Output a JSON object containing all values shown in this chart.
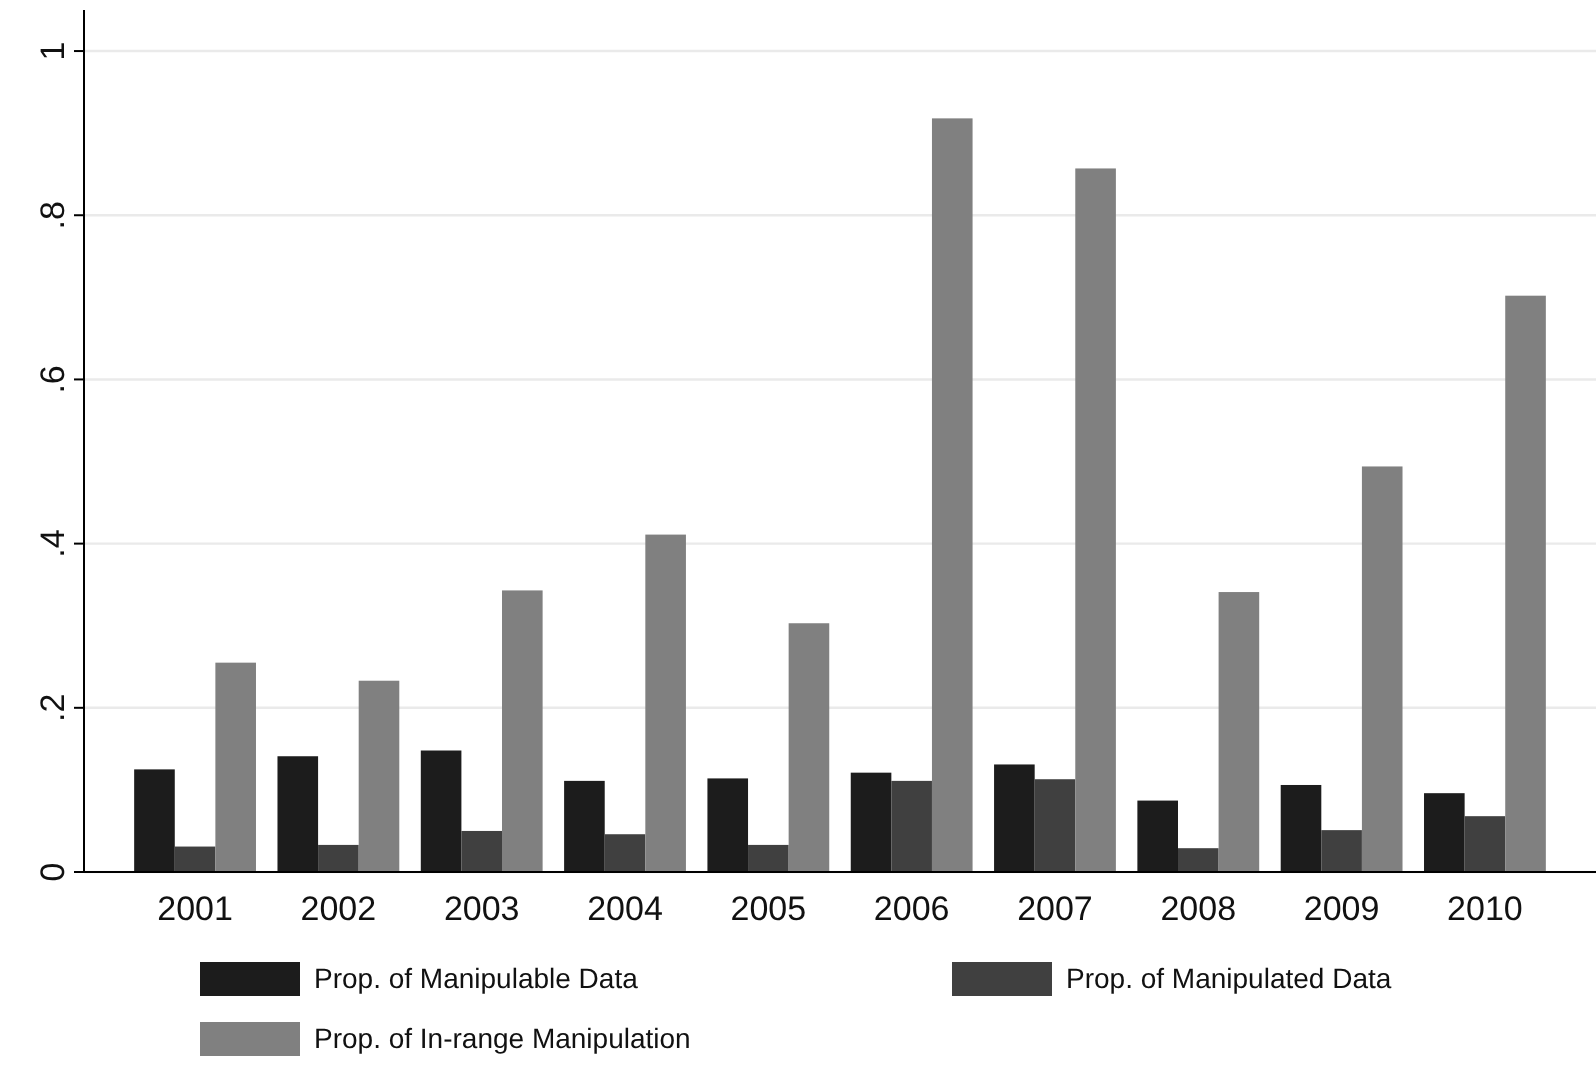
{
  "chart_data": {
    "type": "bar",
    "categories": [
      "2001",
      "2002",
      "2003",
      "2004",
      "2005",
      "2006",
      "2007",
      "2008",
      "2009",
      "2010"
    ],
    "series": [
      {
        "name": "Prop. of Manipulable Data",
        "color": "#1c1c1c",
        "values": [
          0.125,
          0.141,
          0.148,
          0.111,
          0.114,
          0.121,
          0.131,
          0.087,
          0.106,
          0.096
        ]
      },
      {
        "name": "Prop. of Manipulated Data",
        "color": "#404040",
        "values": [
          0.031,
          0.033,
          0.05,
          0.046,
          0.033,
          0.111,
          0.113,
          0.029,
          0.051,
          0.068
        ]
      },
      {
        "name": "Prop. of In-range Manipulation",
        "color": "#808080",
        "values": [
          0.255,
          0.233,
          0.343,
          0.411,
          0.303,
          0.918,
          0.857,
          0.341,
          0.494,
          0.702
        ]
      }
    ],
    "ylim": [
      0,
      1.05
    ],
    "yticks": [
      0,
      {
        "value": 0.2,
        "label": ".2"
      },
      {
        "value": 0.4,
        "label": ".4"
      },
      {
        "value": 0.6,
        "label": ".6"
      },
      {
        "value": 0.8,
        "label": ".8"
      },
      1
    ],
    "grid": "y",
    "legend": "bottom"
  }
}
